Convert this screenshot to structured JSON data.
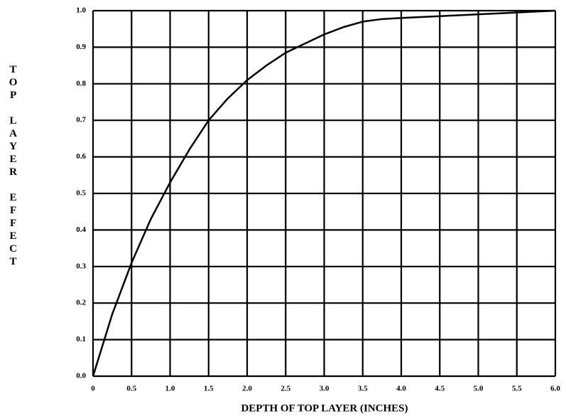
{
  "chart_data": {
    "type": "line",
    "xlabel": "DEPTH OF TOP LAYER (INCHES)",
    "ylabel": "TOP LAYER EFFECT",
    "x": [
      0,
      0.25,
      0.5,
      0.75,
      1.0,
      1.25,
      1.5,
      1.75,
      2.0,
      2.25,
      2.5,
      2.75,
      3.0,
      3.25,
      3.5,
      3.75,
      4.0,
      4.5,
      5.0,
      5.5,
      6.0
    ],
    "series": [
      {
        "color": "#000000",
        "values": [
          0,
          0.17,
          0.31,
          0.43,
          0.53,
          0.62,
          0.7,
          0.76,
          0.81,
          0.85,
          0.885,
          0.91,
          0.935,
          0.955,
          0.97,
          0.977,
          0.98,
          0.985,
          0.99,
          0.995,
          1.0
        ]
      }
    ],
    "xlim": [
      0,
      6
    ],
    "ylim": [
      0,
      1
    ],
    "xticks": [
      0,
      0.5,
      {
        "value": 1,
        "label": "1.0"
      },
      1.5,
      {
        "value": 2,
        "label": "2.0"
      },
      2.5,
      {
        "value": 3,
        "label": "3.0"
      },
      3.5,
      {
        "value": 4,
        "label": "4.0"
      },
      4.5,
      {
        "value": 5,
        "label": "5.0"
      },
      5.5,
      {
        "value": 6,
        "label": "6.0"
      }
    ],
    "yticks": [
      {
        "value": 0,
        "label": "0.0"
      },
      0.1,
      0.2,
      0.3,
      0.4,
      0.5,
      0.6,
      0.7,
      0.8,
      0.9,
      {
        "value": 1,
        "label": "1.0"
      }
    ],
    "grid": true
  }
}
